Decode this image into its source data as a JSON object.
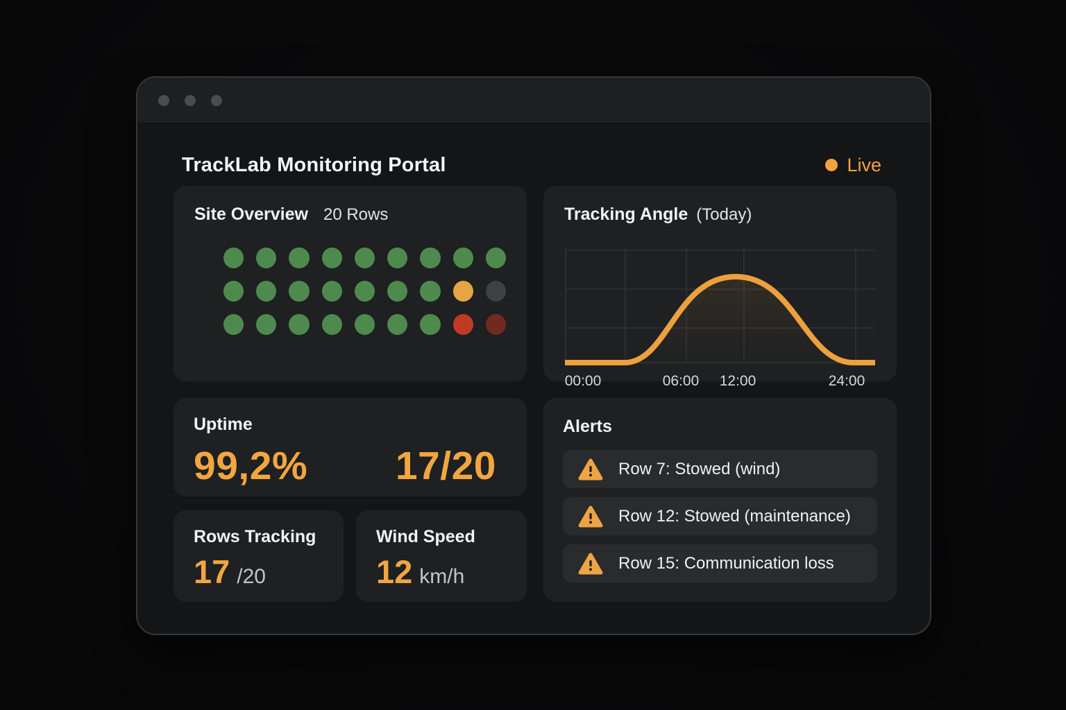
{
  "window": {
    "title": "TrackLab Monitoring Portal",
    "live_label": "Live",
    "accent_color": "#f2a33e"
  },
  "site_overview": {
    "title": "Site Overview",
    "subtitle": "20 Rows",
    "status_colors": {
      "ok": "#4e8a4d",
      "warn": "#e5a542",
      "offline": "#3e4042",
      "fault": "#c03a23",
      "fault_dark": "#722a20"
    },
    "dot_rows": [
      [
        "ok",
        "ok",
        "ok",
        "ok",
        "ok",
        "ok",
        "ok",
        "ok",
        "ok"
      ],
      [
        "ok",
        "ok",
        "ok",
        "ok",
        "ok",
        "ok",
        "ok",
        "warn",
        "offline"
      ],
      [
        "ok",
        "ok",
        "ok",
        "ok",
        "ok",
        "ok",
        "ok",
        "fault",
        "fault_dark"
      ]
    ]
  },
  "tracking_chart": {
    "title": "Tracking Angle",
    "title_suffix": "(Today)",
    "type": "line",
    "line_color": "#eda03d",
    "x_ticks": [
      "00:00",
      "06:00",
      "12:00",
      "24:00"
    ],
    "description": "bell-shaped tracking angle curve, flat at night, peaking near midday"
  },
  "uptime": {
    "label": "Uptime",
    "percent": "99,2%",
    "ratio": "17/20"
  },
  "rows_tracking": {
    "label": "Rows Tracking",
    "value": "17",
    "suffix": "/20"
  },
  "wind_speed": {
    "label": "Wind Speed",
    "value": "12",
    "unit": "km/h"
  },
  "alerts": {
    "title": "Alerts",
    "items": [
      {
        "text": "Row 7: Stowed (wind)"
      },
      {
        "text": "Row 12: Stowed (maintenance)"
      },
      {
        "text": "Row 15: Communication loss"
      }
    ]
  }
}
